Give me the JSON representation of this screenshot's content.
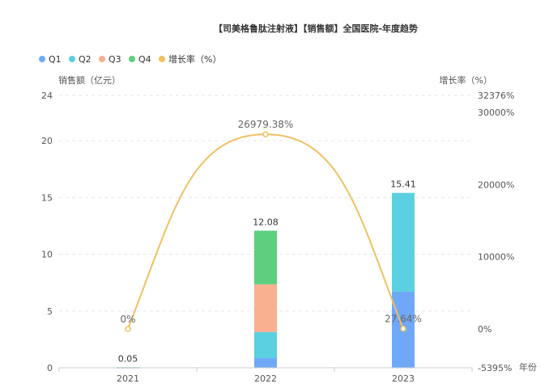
{
  "chart_data": {
    "type": "bar",
    "stacked": true,
    "title": "【司美格鲁肽注射液】【销售额】全国医院-年度趋势",
    "xlabel": "年份",
    "ylabel": "销售额（亿元）",
    "y2label": "增长率（%）",
    "categories": [
      "2021",
      "2022",
      "2023"
    ],
    "ylim": [
      0,
      24
    ],
    "yticks": [
      "0",
      "5",
      "10",
      "15",
      "20",
      "24"
    ],
    "yticks_values": [
      0,
      5,
      10,
      15,
      20,
      24
    ],
    "y2lim": [
      -5395,
      32376
    ],
    "y2ticks": [
      "-5395%",
      "0%",
      "10000%",
      "20000%",
      "30000%",
      "32376%"
    ],
    "y2ticks_values": [
      -5395,
      0,
      10000,
      20000,
      30000,
      32376
    ],
    "legend_position": "top-left",
    "grid": true,
    "series": [
      {
        "name": "Q1",
        "color": "#6fa8f7",
        "values": [
          0.01,
          0.85,
          6.72
        ]
      },
      {
        "name": "Q2",
        "color": "#5ad0e0",
        "values": [
          0.01,
          2.3,
          8.69
        ]
      },
      {
        "name": "Q3",
        "color": "#f8b090",
        "values": [
          0.01,
          4.2,
          0
        ]
      },
      {
        "name": "Q4",
        "color": "#5dcf7f",
        "values": [
          0.02,
          4.73,
          0
        ]
      }
    ],
    "totals": [
      "0.05",
      "12.08",
      "15.41"
    ],
    "totals_values": [
      0.05,
      12.08,
      15.41
    ],
    "line_series": {
      "name": "增长率（%）",
      "color": "#f0c060",
      "values": [
        0,
        26979.38,
        27.64
      ],
      "labels": [
        "0%",
        "26979.38%",
        "27.64%"
      ]
    }
  }
}
